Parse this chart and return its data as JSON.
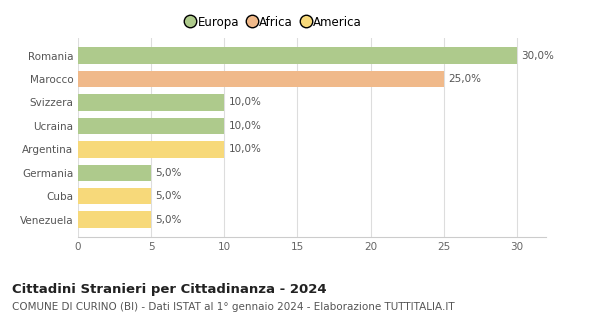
{
  "categories": [
    "Venezuela",
    "Cuba",
    "Germania",
    "Argentina",
    "Ucraina",
    "Svizzera",
    "Marocco",
    "Romania"
  ],
  "values": [
    5.0,
    5.0,
    5.0,
    10.0,
    10.0,
    10.0,
    25.0,
    30.0
  ],
  "colors": [
    "#f7d97a",
    "#f7d97a",
    "#aeca8c",
    "#f7d97a",
    "#aeca8c",
    "#aeca8c",
    "#f0b98a",
    "#aeca8c"
  ],
  "legend_items": [
    {
      "label": "Europa",
      "color": "#aeca8c"
    },
    {
      "label": "Africa",
      "color": "#f0b98a"
    },
    {
      "label": "America",
      "color": "#f7d97a"
    }
  ],
  "xlim": [
    0,
    32
  ],
  "xticks": [
    0,
    5,
    10,
    15,
    20,
    25,
    30
  ],
  "title": "Cittadini Stranieri per Cittadinanza - 2024",
  "subtitle": "COMUNE DI CURINO (BI) - Dati ISTAT al 1° gennaio 2024 - Elaborazione TUTTITALIA.IT",
  "bar_height": 0.7,
  "background_color": "#ffffff",
  "grid_color": "#dddddd",
  "title_fontsize": 9.5,
  "subtitle_fontsize": 7.5,
  "tick_fontsize": 7.5,
  "label_fontsize": 7.5,
  "legend_fontsize": 8.5
}
